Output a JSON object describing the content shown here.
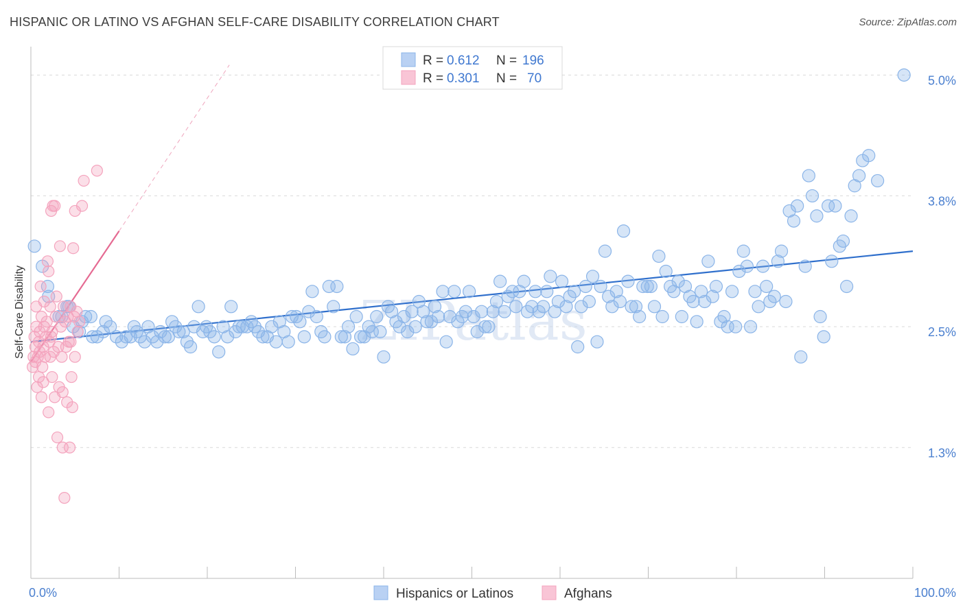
{
  "title": "HISPANIC OR LATINO VS AFGHAN SELF-CARE DISABILITY CORRELATION CHART",
  "source": "Source: ZipAtlas.com",
  "watermark": "ZIPatlas",
  "chart_data": {
    "type": "scatter",
    "ylabel": "Self-Care Disability",
    "xlabel": "",
    "xlim": [
      0,
      100
    ],
    "ylim": [
      0,
      5.2
    ],
    "x_tick_labels": [
      "0.0%",
      "100.0%"
    ],
    "y_ticks": [
      {
        "value": 1.3,
        "label": "1.3%"
      },
      {
        "value": 2.5,
        "label": "2.5%"
      },
      {
        "value": 3.8,
        "label": "3.8%"
      },
      {
        "value": 5.0,
        "label": "5.0%"
      }
    ],
    "grid": true,
    "legend_position": "top-center",
    "stats": [
      {
        "r_label": "R =",
        "r": "0.612",
        "n_label": "N =",
        "n": "196"
      },
      {
        "r_label": "R =",
        "r": "0.301",
        "n_label": "N =",
        "n": "70"
      }
    ],
    "series": [
      {
        "name": "Hispanics or Latinos",
        "color": "#8ab4e8",
        "line_color": "#2f6fcc",
        "trend": {
          "x": [
            0,
            100
          ],
          "y": [
            2.35,
            3.25
          ]
        },
        "points": [
          [
            0.4,
            3.3
          ],
          [
            1.3,
            3.1
          ],
          [
            1.9,
            2.9
          ],
          [
            2.0,
            2.8
          ],
          [
            3.2,
            2.6
          ],
          [
            3.5,
            2.6
          ],
          [
            4.1,
            2.7
          ],
          [
            4.3,
            2.7
          ],
          [
            4.8,
            2.5
          ],
          [
            5.5,
            2.45
          ],
          [
            5.8,
            2.55
          ],
          [
            6.2,
            2.6
          ],
          [
            6.8,
            2.6
          ],
          [
            7.0,
            2.4
          ],
          [
            7.5,
            2.4
          ],
          [
            8.2,
            2.45
          ],
          [
            8.5,
            2.55
          ],
          [
            9.0,
            2.5
          ],
          [
            9.7,
            2.4
          ],
          [
            10.3,
            2.35
          ],
          [
            10.8,
            2.4
          ],
          [
            11.3,
            2.4
          ],
          [
            11.7,
            2.5
          ],
          [
            12.0,
            2.45
          ],
          [
            12.4,
            2.4
          ],
          [
            12.9,
            2.35
          ],
          [
            13.3,
            2.5
          ],
          [
            13.8,
            2.4
          ],
          [
            14.3,
            2.35
          ],
          [
            14.7,
            2.45
          ],
          [
            15.2,
            2.4
          ],
          [
            15.6,
            2.4
          ],
          [
            16.0,
            2.55
          ],
          [
            16.4,
            2.5
          ],
          [
            16.8,
            2.45
          ],
          [
            17.3,
            2.45
          ],
          [
            17.7,
            2.35
          ],
          [
            18.1,
            2.3
          ],
          [
            18.5,
            2.5
          ],
          [
            19.0,
            2.7
          ],
          [
            19.5,
            2.45
          ],
          [
            19.9,
            2.5
          ],
          [
            20.3,
            2.45
          ],
          [
            20.8,
            2.4
          ],
          [
            21.3,
            2.25
          ],
          [
            21.8,
            2.5
          ],
          [
            22.3,
            2.4
          ],
          [
            22.7,
            2.7
          ],
          [
            23.2,
            2.45
          ],
          [
            23.6,
            2.5
          ],
          [
            24.0,
            2.5
          ],
          [
            24.5,
            2.5
          ],
          [
            25.0,
            2.55
          ],
          [
            25.4,
            2.5
          ],
          [
            25.8,
            2.45
          ],
          [
            26.3,
            2.4
          ],
          [
            26.8,
            2.4
          ],
          [
            27.3,
            2.5
          ],
          [
            27.8,
            2.35
          ],
          [
            28.2,
            2.55
          ],
          [
            28.7,
            2.45
          ],
          [
            29.2,
            2.35
          ],
          [
            29.6,
            2.6
          ],
          [
            30.1,
            2.6
          ],
          [
            30.5,
            2.55
          ],
          [
            31.0,
            2.4
          ],
          [
            31.5,
            2.65
          ],
          [
            31.9,
            2.85
          ],
          [
            32.4,
            2.6
          ],
          [
            32.9,
            2.45
          ],
          [
            33.3,
            2.4
          ],
          [
            33.8,
            2.9
          ],
          [
            34.3,
            2.7
          ],
          [
            34.7,
            2.9
          ],
          [
            35.2,
            2.4
          ],
          [
            35.6,
            2.4
          ],
          [
            36.0,
            2.5
          ],
          [
            36.5,
            2.28
          ],
          [
            36.9,
            2.6
          ],
          [
            37.4,
            2.4
          ],
          [
            37.8,
            2.4
          ],
          [
            38.3,
            2.5
          ],
          [
            38.7,
            2.45
          ],
          [
            39.2,
            2.6
          ],
          [
            39.6,
            2.45
          ],
          [
            40.0,
            2.2
          ],
          [
            40.5,
            2.7
          ],
          [
            40.9,
            2.65
          ],
          [
            41.4,
            2.55
          ],
          [
            41.8,
            2.5
          ],
          [
            42.3,
            2.6
          ],
          [
            42.7,
            2.45
          ],
          [
            43.2,
            2.65
          ],
          [
            43.6,
            2.5
          ],
          [
            44.0,
            2.75
          ],
          [
            44.5,
            2.65
          ],
          [
            44.9,
            2.55
          ],
          [
            45.4,
            2.55
          ],
          [
            45.8,
            2.7
          ],
          [
            46.2,
            2.6
          ],
          [
            46.7,
            2.85
          ],
          [
            47.1,
            2.35
          ],
          [
            47.5,
            2.6
          ],
          [
            48.0,
            2.85
          ],
          [
            48.4,
            2.55
          ],
          [
            48.9,
            2.6
          ],
          [
            49.3,
            2.65
          ],
          [
            49.7,
            2.85
          ],
          [
            50.2,
            2.6
          ],
          [
            50.6,
            2.45
          ],
          [
            51.1,
            2.65
          ],
          [
            51.5,
            2.5
          ],
          [
            51.9,
            2.5
          ],
          [
            52.4,
            2.65
          ],
          [
            52.8,
            2.75
          ],
          [
            53.2,
            2.95
          ],
          [
            53.7,
            2.65
          ],
          [
            54.1,
            2.8
          ],
          [
            54.6,
            2.85
          ],
          [
            55.0,
            2.7
          ],
          [
            55.4,
            2.85
          ],
          [
            55.9,
            2.95
          ],
          [
            56.3,
            2.65
          ],
          [
            56.8,
            2.7
          ],
          [
            57.2,
            2.85
          ],
          [
            57.6,
            2.65
          ],
          [
            58.1,
            2.7
          ],
          [
            58.5,
            2.85
          ],
          [
            58.9,
            3.0
          ],
          [
            59.4,
            2.65
          ],
          [
            59.8,
            2.75
          ],
          [
            60.2,
            2.95
          ],
          [
            60.7,
            2.7
          ],
          [
            61.1,
            2.8
          ],
          [
            61.6,
            2.85
          ],
          [
            62.0,
            2.3
          ],
          [
            62.4,
            2.7
          ],
          [
            62.9,
            2.9
          ],
          [
            63.3,
            2.75
          ],
          [
            63.7,
            3.0
          ],
          [
            64.2,
            2.35
          ],
          [
            64.6,
            2.9
          ],
          [
            65.1,
            3.25
          ],
          [
            65.5,
            2.8
          ],
          [
            65.9,
            2.7
          ],
          [
            66.4,
            2.85
          ],
          [
            66.8,
            2.75
          ],
          [
            67.2,
            3.45
          ],
          [
            67.7,
            2.95
          ],
          [
            68.1,
            2.7
          ],
          [
            68.6,
            2.7
          ],
          [
            69.0,
            2.6
          ],
          [
            69.4,
            2.9
          ],
          [
            69.9,
            2.9
          ],
          [
            70.3,
            2.9
          ],
          [
            70.7,
            2.7
          ],
          [
            71.2,
            3.2
          ],
          [
            71.6,
            2.6
          ],
          [
            72.0,
            3.05
          ],
          [
            72.5,
            2.9
          ],
          [
            72.9,
            2.85
          ],
          [
            73.4,
            2.95
          ],
          [
            73.8,
            2.6
          ],
          [
            74.2,
            2.9
          ],
          [
            74.7,
            2.8
          ],
          [
            75.1,
            2.75
          ],
          [
            75.5,
            2.55
          ],
          [
            76.0,
            2.85
          ],
          [
            76.4,
            2.75
          ],
          [
            76.8,
            3.15
          ],
          [
            77.3,
            2.8
          ],
          [
            77.7,
            2.9
          ],
          [
            78.2,
            2.55
          ],
          [
            78.6,
            2.6
          ],
          [
            79.0,
            2.5
          ],
          [
            79.5,
            2.85
          ],
          [
            79.9,
            2.5
          ],
          [
            80.3,
            3.05
          ],
          [
            80.8,
            3.25
          ],
          [
            81.2,
            3.1
          ],
          [
            81.6,
            2.5
          ],
          [
            82.1,
            2.85
          ],
          [
            82.5,
            2.7
          ],
          [
            83.0,
            3.1
          ],
          [
            83.4,
            2.9
          ],
          [
            83.8,
            2.75
          ],
          [
            84.3,
            2.8
          ],
          [
            84.7,
            3.15
          ],
          [
            85.1,
            3.25
          ],
          [
            85.6,
            2.75
          ],
          [
            86.0,
            3.65
          ],
          [
            86.5,
            3.55
          ],
          [
            86.9,
            3.7
          ],
          [
            87.3,
            2.2
          ],
          [
            87.8,
            3.1
          ],
          [
            88.2,
            4.0
          ],
          [
            88.6,
            3.8
          ],
          [
            89.1,
            3.6
          ],
          [
            89.5,
            2.6
          ],
          [
            89.9,
            2.4
          ],
          [
            90.4,
            3.7
          ],
          [
            90.8,
            3.15
          ],
          [
            91.2,
            3.7
          ],
          [
            91.7,
            3.3
          ],
          [
            92.1,
            3.35
          ],
          [
            92.5,
            2.9
          ],
          [
            93.0,
            3.6
          ],
          [
            93.4,
            3.9
          ],
          [
            93.9,
            4.0
          ],
          [
            94.3,
            4.15
          ],
          [
            95.0,
            4.2
          ],
          [
            96.0,
            3.95
          ],
          [
            99.0,
            5.0
          ]
        ]
      },
      {
        "name": "Afghans",
        "color": "#f4a3bd",
        "line_color": "#e56a92",
        "trend": {
          "x": [
            0,
            10
          ],
          "y": [
            2.15,
            3.45
          ]
        },
        "trend_extension": {
          "x": [
            10,
            22.5
          ],
          "y": [
            3.45,
            5.1
          ]
        },
        "points": [
          [
            0.2,
            2.1
          ],
          [
            0.3,
            2.2
          ],
          [
            0.4,
            2.4
          ],
          [
            0.5,
            2.3
          ],
          [
            0.6,
            2.5
          ],
          [
            0.6,
            2.7
          ],
          [
            0.7,
            1.9
          ],
          [
            0.8,
            2.2
          ],
          [
            0.9,
            2.35
          ],
          [
            1.0,
            2.45
          ],
          [
            1.1,
            2.9
          ],
          [
            1.2,
            2.6
          ],
          [
            1.2,
            1.8
          ],
          [
            1.3,
            2.1
          ],
          [
            1.4,
            2.3
          ],
          [
            1.5,
            2.5
          ],
          [
            1.5,
            2.75
          ],
          [
            1.6,
            2.2
          ],
          [
            1.7,
            2.4
          ],
          [
            1.8,
            2.55
          ],
          [
            1.9,
            3.15
          ],
          [
            2.0,
            3.05
          ],
          [
            2.0,
            1.65
          ],
          [
            2.1,
            2.35
          ],
          [
            2.2,
            2.2
          ],
          [
            2.2,
            2.7
          ],
          [
            2.3,
            3.65
          ],
          [
            2.4,
            2.0
          ],
          [
            2.4,
            2.45
          ],
          [
            2.5,
            3.7
          ],
          [
            2.6,
            2.25
          ],
          [
            2.7,
            3.7
          ],
          [
            2.7,
            1.8
          ],
          [
            2.8,
            2.6
          ],
          [
            2.9,
            2.8
          ],
          [
            3.0,
            1.4
          ],
          [
            3.1,
            2.3
          ],
          [
            3.2,
            1.9
          ],
          [
            3.3,
            3.3
          ],
          [
            3.4,
            2.5
          ],
          [
            3.5,
            2.2
          ],
          [
            3.6,
            1.3
          ],
          [
            3.6,
            1.85
          ],
          [
            3.7,
            2.7
          ],
          [
            3.8,
            0.8
          ],
          [
            3.9,
            2.55
          ],
          [
            4.0,
            2.3
          ],
          [
            4.1,
            1.75
          ],
          [
            4.2,
            2.6
          ],
          [
            4.3,
            2.35
          ],
          [
            4.4,
            1.3
          ],
          [
            4.5,
            2.7
          ],
          [
            4.5,
            2.35
          ],
          [
            4.6,
            2.0
          ],
          [
            4.7,
            1.7
          ],
          [
            4.8,
            3.28
          ],
          [
            4.9,
            2.6
          ],
          [
            5.0,
            3.65
          ],
          [
            5.0,
            2.2
          ],
          [
            5.2,
            2.65
          ],
          [
            5.3,
            2.45
          ],
          [
            5.5,
            2.55
          ],
          [
            5.8,
            3.7
          ],
          [
            6.0,
            3.95
          ],
          [
            0.5,
            2.15
          ],
          [
            1.0,
            2.25
          ],
          [
            1.4,
            1.95
          ],
          [
            2.3,
            2.4
          ],
          [
            7.5,
            4.05
          ],
          [
            0.9,
            2.0
          ]
        ]
      }
    ]
  }
}
